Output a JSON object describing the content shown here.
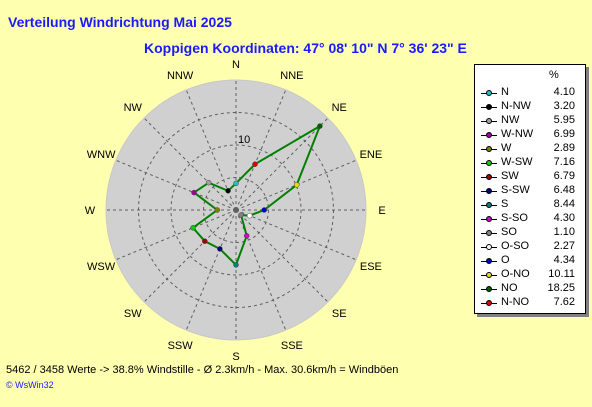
{
  "header": {
    "title": "Verteilung Windrichtung    Mai 2025",
    "subtitle": "Koppigen  Koordinaten: 47° 08' 10\" N  7° 36' 23\" E"
  },
  "legend": {
    "unit": "%"
  },
  "footer": {
    "summary": "5462 / 3458 Werte  -> 38.8% Windstille   -   Ø 2.3km/h  -  Max. 30.6km/h = Windböen",
    "copyright": "© WsWin32"
  },
  "chart_data": {
    "type": "radar",
    "title": "Verteilung Windrichtung    Mai 2025",
    "r_tick_label": "10",
    "r_max": 20,
    "grid": true,
    "legend_position": "right",
    "series_color": "#008000",
    "directions": [
      "N",
      "NNE",
      "NE",
      "ENE",
      "E",
      "ESE",
      "SE",
      "SSE",
      "S",
      "SSW",
      "SW",
      "WSW",
      "W",
      "WNW",
      "NW",
      "NNW"
    ],
    "legend": [
      {
        "name": "N",
        "value": "4.10",
        "color": "#20c0c0"
      },
      {
        "name": "N-NW",
        "value": "3.20",
        "color": "#000000"
      },
      {
        "name": "NW",
        "value": "5.95",
        "color": "#a0a0a0"
      },
      {
        "name": "W-NW",
        "value": "6.99",
        "color": "#a000a0"
      },
      {
        "name": "W",
        "value": "2.89",
        "color": "#808000"
      },
      {
        "name": "W-SW",
        "value": "7.16",
        "color": "#00d000"
      },
      {
        "name": "SW",
        "value": "6.79",
        "color": "#a00000"
      },
      {
        "name": "S-SW",
        "value": "6.48",
        "color": "#000080"
      },
      {
        "name": "S",
        "value": "8.44",
        "color": "#008080"
      },
      {
        "name": "S-SO",
        "value": "4.30",
        "color": "#d000d0"
      },
      {
        "name": "SO",
        "value": "1.10",
        "color": "#808080"
      },
      {
        "name": "O-SO",
        "value": "2.27",
        "color": "#ffffff"
      },
      {
        "name": "O",
        "value": "4.34",
        "color": "#0000d0"
      },
      {
        "name": "O-NO",
        "value": "10.11",
        "color": "#e0e000"
      },
      {
        "name": "NO",
        "value": "18.25",
        "color": "#006000"
      },
      {
        "name": "N-NO",
        "value": "7.62",
        "color": "#e00000"
      }
    ],
    "values": {
      "N": 4.1,
      "NNE": 7.62,
      "NE": 18.25,
      "ENE": 10.11,
      "E": 4.34,
      "ESE": 2.27,
      "SE": 1.1,
      "SSE": 4.3,
      "S": 8.44,
      "SSW": 6.48,
      "SW": 6.79,
      "WSW": 7.16,
      "W": 2.89,
      "WNW": 6.99,
      "NW": 5.95,
      "NNW": 3.2
    },
    "marker_colors": {
      "N": "#20c0c0",
      "NNE": "#e00000",
      "NE": "#006000",
      "ENE": "#e0e000",
      "E": "#0000d0",
      "ESE": "#ffffff",
      "SE": "#808080",
      "SSE": "#d000d0",
      "S": "#008080",
      "SSW": "#000080",
      "SW": "#a00000",
      "WSW": "#00d000",
      "W": "#808000",
      "WNW": "#a000a0",
      "NW": "#a0a0a0",
      "NNW": "#000000"
    }
  }
}
